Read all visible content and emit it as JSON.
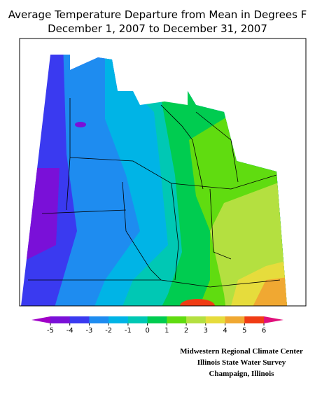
{
  "title": [
    "Average Temperature Departure from Mean in Degrees F",
    "December 1, 2007 to December 31, 2007"
  ],
  "legend": {
    "ticks": [
      -5,
      -4,
      -3,
      -2,
      -1,
      0,
      1,
      2,
      3,
      4,
      5,
      6
    ],
    "colors": [
      "#a000c8",
      "#7a10d8",
      "#3a3af0",
      "#1e8cf0",
      "#00b4e6",
      "#00c8b4",
      "#00cc50",
      "#60dc10",
      "#b4e040",
      "#e6dc3c",
      "#f0a832",
      "#f03c14",
      "#e0107a"
    ]
  },
  "credits": [
    "Midwestern Regional Climate Center",
    "Illinois State Water Survey",
    "Champaign, Illinois"
  ]
}
